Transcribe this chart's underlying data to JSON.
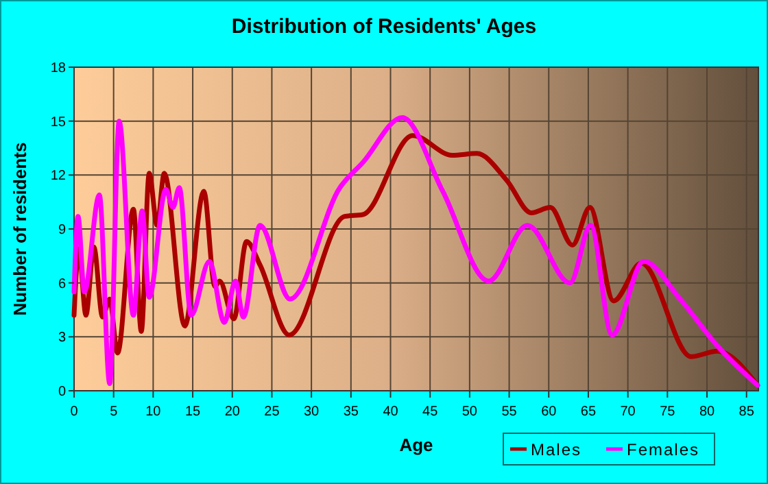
{
  "chart_data": {
    "type": "line",
    "title": "Distribution of Residents' Ages",
    "xlabel": "Age",
    "ylabel": "Number of residents",
    "xlim": [
      0,
      86.5
    ],
    "xticks": [
      0,
      5,
      10,
      15,
      20,
      25,
      30,
      35,
      40,
      45,
      50,
      55,
      60,
      65,
      70,
      75,
      80,
      85
    ],
    "ylim": [
      0,
      18
    ],
    "yticks": [
      0,
      3,
      6,
      9,
      12,
      15,
      18
    ],
    "grid": true,
    "legend": "bottom right",
    "marker": "none",
    "line_style": "solid",
    "series": [
      {
        "name": "Males",
        "color": "#aa0000",
        "x": [
          0,
          0.6,
          1.5,
          2.5,
          3.6,
          4.5,
          5.5,
          7.5,
          8.5,
          9.5,
          10.5,
          11.4,
          14,
          16.4,
          17.8,
          18.4,
          20.2,
          21.8,
          23.5,
          27.2,
          34.2,
          36.5,
          42.8,
          47.8,
          50.9,
          54.7,
          57.8,
          60.2,
          63,
          65.2,
          68.2,
          71.7,
          78,
          81.3,
          86.4
        ],
        "values": [
          4.2,
          7.9,
          4.2,
          8,
          4.1,
          5.1,
          2.1,
          10.1,
          3.3,
          12.1,
          9.2,
          12.1,
          3.6,
          11.1,
          5.8,
          6.1,
          4,
          8.3,
          7,
          3.1,
          9.7,
          9.8,
          14.2,
          13.1,
          13.2,
          11.7,
          9.9,
          10.2,
          8.1,
          10.2,
          5,
          7.1,
          1.9,
          2.2,
          0.3
        ]
      },
      {
        "name": "Females",
        "color": "#ff00ff",
        "x": [
          0,
          0.5,
          1.3,
          3.2,
          4.5,
          5.7,
          7.5,
          8.6,
          9.5,
          11.6,
          12.5,
          13.3,
          14.8,
          17.1,
          19,
          20.4,
          21.4,
          23.5,
          27.3,
          33.6,
          36.5,
          41.5,
          46.6,
          52.4,
          57.3,
          62.7,
          65.3,
          68,
          72,
          76.6,
          81.3,
          86.4
        ],
        "values": [
          5.5,
          9.7,
          5.5,
          10.9,
          0.4,
          15,
          4.2,
          10,
          5.2,
          11.2,
          10.2,
          11.3,
          4.2,
          7.2,
          3.8,
          6.1,
          4.1,
          9.2,
          5.1,
          11.3,
          12.7,
          15.2,
          11.1,
          6.1,
          9.2,
          6,
          9.2,
          3.1,
          7.2,
          5.1,
          2.5,
          0.3
        ]
      }
    ]
  }
}
